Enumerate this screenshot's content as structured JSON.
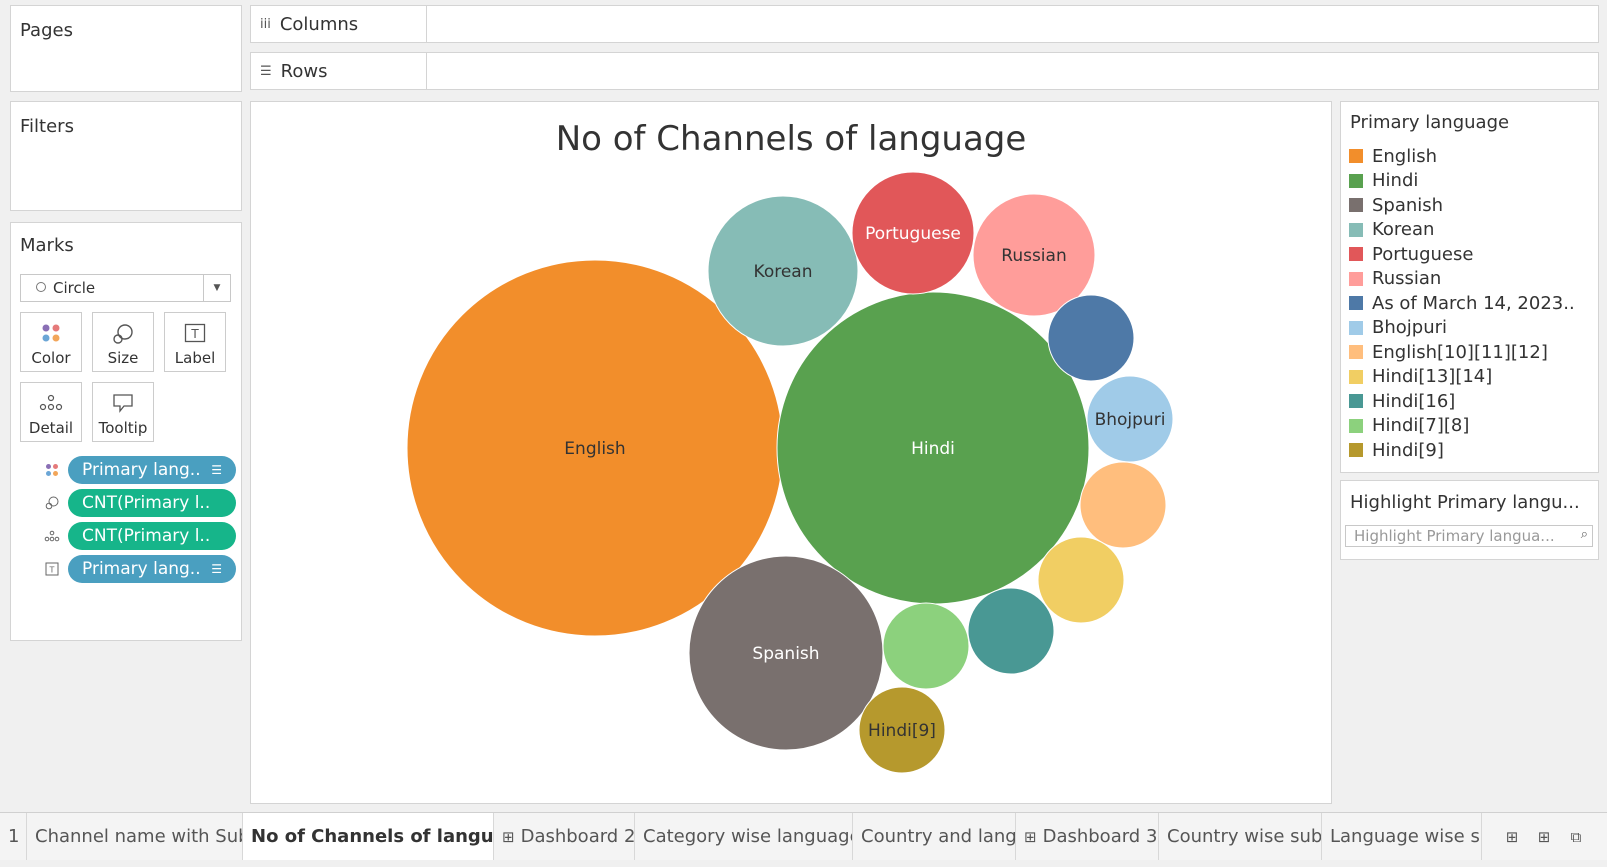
{
  "panels": {
    "pages_title": "Pages",
    "filters_title": "Filters",
    "marks_title": "Marks"
  },
  "shelves": {
    "columns_label": "Columns",
    "rows_label": "Rows"
  },
  "marks": {
    "type": "Circle",
    "buttons": {
      "color": "Color",
      "size": "Size",
      "label": "Label",
      "detail": "Detail",
      "tooltip": "Tooltip"
    },
    "pills": [
      {
        "text": "Primary lang..",
        "color": "#4a9fc0"
      },
      {
        "text": "CNT(Primary l..",
        "color": "#16b58a"
      },
      {
        "text": "CNT(Primary l..",
        "color": "#16b58a"
      },
      {
        "text": "Primary lang..",
        "color": "#4a9fc0"
      }
    ]
  },
  "legend": {
    "title": "Primary language",
    "items": [
      {
        "label": "English",
        "color": "#f28e2b"
      },
      {
        "label": "Hindi",
        "color": "#59a14f"
      },
      {
        "label": "Spanish",
        "color": "#79706e"
      },
      {
        "label": "Korean",
        "color": "#86bcb6"
      },
      {
        "label": "Portuguese",
        "color": "#e15759"
      },
      {
        "label": "Russian",
        "color": "#ff9d9a"
      },
      {
        "label": "As of March 14, 2023..",
        "color": "#4e79a7"
      },
      {
        "label": "Bhojpuri",
        "color": "#a0cbe8"
      },
      {
        "label": "English[10][11][12]",
        "color": "#ffbe7d"
      },
      {
        "label": "Hindi[13][14]",
        "color": "#f1ce63"
      },
      {
        "label": "Hindi[16]",
        "color": "#499894"
      },
      {
        "label": "Hindi[7][8]",
        "color": "#8cd17d"
      },
      {
        "label": "Hindi[9]",
        "color": "#b6992d"
      }
    ]
  },
  "highlight": {
    "title": "Highlight Primary langu...",
    "placeholder": "Highlight Primary langua..."
  },
  "chart_data": {
    "type": "bubble",
    "title": "No of Channels of language",
    "bubbles": [
      {
        "label": "English",
        "color": "#f28e2b",
        "show_label": true,
        "text_color": "#333333"
      },
      {
        "label": "Hindi",
        "color": "#59a14f",
        "show_label": true,
        "text_color": "#ffffff"
      },
      {
        "label": "Spanish",
        "color": "#79706e",
        "show_label": true,
        "text_color": "#ffffff"
      },
      {
        "label": "Korean",
        "color": "#86bcb6",
        "show_label": true,
        "text_color": "#333333"
      },
      {
        "label": "Portuguese",
        "color": "#e15759",
        "show_label": true,
        "text_color": "#ffffff"
      },
      {
        "label": "Russian",
        "color": "#ff9d9a",
        "show_label": true,
        "text_color": "#333333"
      },
      {
        "label": "As of March 14, 2023..",
        "color": "#4e79a7",
        "show_label": false,
        "text_color": "#ffffff"
      },
      {
        "label": "Bhojpuri",
        "color": "#a0cbe8",
        "show_label": true,
        "text_color": "#333333"
      },
      {
        "label": "English[10][11][12]",
        "color": "#ffbe7d",
        "show_label": false,
        "text_color": "#333333"
      },
      {
        "label": "Hindi[13][14]",
        "color": "#f1ce63",
        "show_label": false,
        "text_color": "#333333"
      },
      {
        "label": "Hindi[16]",
        "color": "#499894",
        "show_label": false,
        "text_color": "#ffffff"
      },
      {
        "label": "Hindi[7][8]",
        "color": "#8cd17d",
        "show_label": false,
        "text_color": "#333333"
      },
      {
        "label": "Hindi[9]",
        "color": "#b6992d",
        "show_label": true,
        "text_color": "#333333"
      }
    ]
  },
  "tabs": [
    {
      "label": "1",
      "active": false,
      "icon": ""
    },
    {
      "label": "Channel name with Sub",
      "active": false,
      "icon": ""
    },
    {
      "label": "No of Channels of language",
      "active": true,
      "icon": ""
    },
    {
      "label": "Dashboard 2",
      "active": false,
      "icon": "⊞"
    },
    {
      "label": "Category wise language",
      "active": false,
      "icon": ""
    },
    {
      "label": "Country and lang",
      "active": false,
      "icon": ""
    },
    {
      "label": "Dashboard 3",
      "active": false,
      "icon": "⊞"
    },
    {
      "label": "Country wise sub",
      "active": false,
      "icon": ""
    },
    {
      "label": "Language wise su",
      "active": false,
      "icon": ""
    }
  ]
}
